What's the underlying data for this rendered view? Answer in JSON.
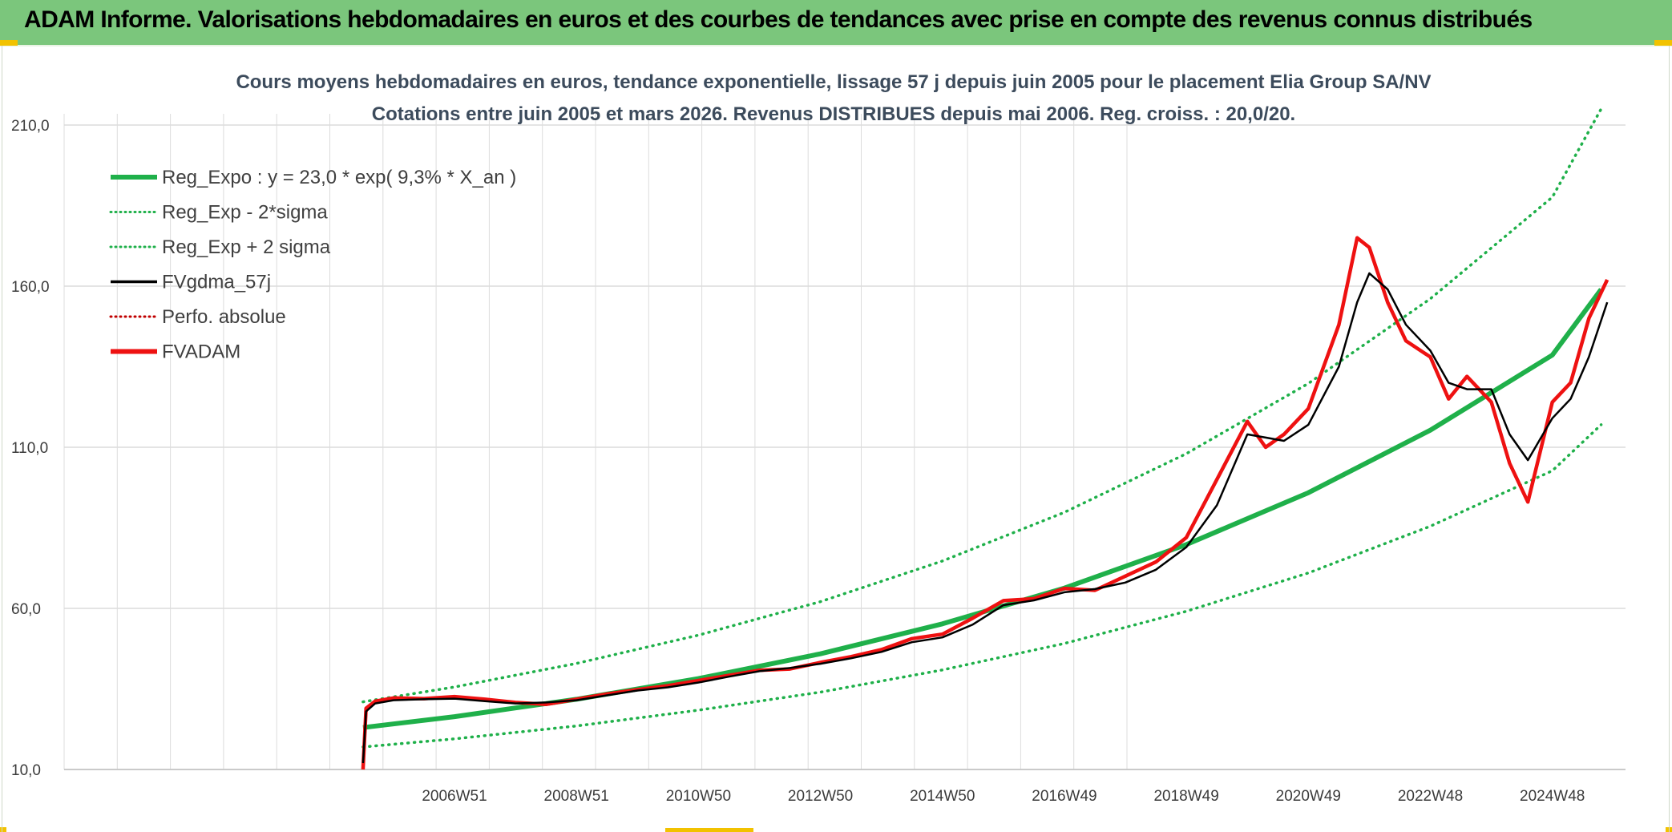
{
  "header": {
    "title": "ADAM Informe. Valorisations hebdomadaires en euros et des courbes de tendances avec prise en compte des revenus connus distribués"
  },
  "colors": {
    "header_bg": "#7bc67c",
    "reg_expo": "#1fb04a",
    "fvgdma": "#000000",
    "perfo": "#c00000",
    "fvadam": "#ee1111",
    "grid": "#dcdcdc"
  },
  "chart_data": {
    "type": "line",
    "title_line1": "Cours moyens hebdomadaires en euros, tendance exponentielle, lissage 57 j depuis juin 2005 pour le placement Elia Group SA/NV",
    "title_line2": "Cotations entre juin 2005 et mars 2026. Revenus DISTRIBUES depuis mai 2006. Reg. croiss. : 20,0/20.",
    "xlim": [
      2000.6,
      2026.2
    ],
    "ylim": [
      10,
      210
    ],
    "y_ticks": [
      {
        "value": 10,
        "label": "10,0"
      },
      {
        "value": 60,
        "label": "60,0"
      },
      {
        "value": 110,
        "label": "110,0"
      },
      {
        "value": 160,
        "label": "160,0"
      },
      {
        "value": 210,
        "label": "210,0"
      }
    ],
    "x_ticks": [
      {
        "x": 2007.0,
        "label": "2006W51"
      },
      {
        "x": 2009.0,
        "label": "2008W51"
      },
      {
        "x": 2011.0,
        "label": "2010W50"
      },
      {
        "x": 2013.0,
        "label": "2012W50"
      },
      {
        "x": 2015.0,
        "label": "2014W50"
      },
      {
        "x": 2017.0,
        "label": "2016W49"
      },
      {
        "x": 2019.0,
        "label": "2018W49"
      },
      {
        "x": 2021.0,
        "label": "2020W49"
      },
      {
        "x": 2023.0,
        "label": "2022W48"
      },
      {
        "x": 2025.0,
        "label": "2024W48"
      }
    ],
    "legend": [
      {
        "key": "reg_expo",
        "label": "Reg_Expo : y = 23,0 * exp( 9,3% *  X_an )",
        "style": "thick",
        "color": "#1fb04a"
      },
      {
        "key": "reg_minus",
        "label": "Reg_Exp - 2*sigma",
        "style": "dotted",
        "color": "#1fb04a"
      },
      {
        "key": "reg_plus",
        "label": "Reg_Exp + 2 sigma",
        "style": "dotted",
        "color": "#1fb04a"
      },
      {
        "key": "fvgdma",
        "label": "FVgdma_57j",
        "style": "solid",
        "color": "#000000"
      },
      {
        "key": "perfo",
        "label": "Perfo. absolue",
        "style": "dotted",
        "color": "#c00000"
      },
      {
        "key": "fvadam",
        "label": "FVADAM",
        "style": "thick",
        "color": "#ee1111"
      }
    ],
    "series": [
      {
        "key": "reg_expo",
        "x": [
          2005.5,
          2007,
          2009,
          2011,
          2013,
          2015,
          2017,
          2019,
          2021,
          2023,
          2025,
          2025.8
        ],
        "values": [
          23.0,
          26.4,
          31.8,
          38.2,
          45.9,
          55.2,
          66.3,
          79.8,
          95.9,
          115.3,
          138.6,
          159.0
        ]
      },
      {
        "key": "reg_minus",
        "x": [
          2005.5,
          2007,
          2009,
          2011,
          2013,
          2015,
          2017,
          2019,
          2021,
          2023,
          2025,
          2025.8
        ],
        "values": [
          17.0,
          19.5,
          23.5,
          28.4,
          34.0,
          40.9,
          49.1,
          59.1,
          71.0,
          85.5,
          102.7,
          117.0
        ]
      },
      {
        "key": "reg_plus",
        "x": [
          2005.5,
          2007,
          2009,
          2011,
          2013,
          2015,
          2017,
          2019,
          2021,
          2023,
          2025,
          2025.8
        ],
        "values": [
          31.0,
          35.6,
          42.9,
          51.7,
          62.1,
          74.7,
          89.8,
          108.0,
          129.8,
          156.1,
          187.6,
          215.0
        ]
      },
      {
        "key": "fvgdma",
        "x": [
          2005.5,
          2005.55,
          2005.7,
          2006,
          2006.5,
          2007,
          2007.5,
          2008,
          2008.5,
          2009,
          2009.5,
          2010,
          2010.5,
          2011,
          2011.5,
          2012,
          2012.5,
          2013,
          2013.5,
          2014,
          2014.5,
          2015,
          2015.5,
          2016,
          2016.5,
          2017,
          2017.5,
          2018,
          2018.5,
          2019,
          2019.5,
          2020,
          2020.3,
          2020.6,
          2021,
          2021.5,
          2021.8,
          2022,
          2022.3,
          2022.6,
          2023,
          2023.3,
          2023.6,
          2024,
          2024.3,
          2024.6,
          2025,
          2025.3,
          2025.6,
          2025.9
        ],
        "values": [
          12,
          28,
          30.5,
          31.5,
          31.8,
          32,
          31.2,
          30.5,
          30.8,
          31.5,
          33,
          34.5,
          35.5,
          37,
          38.8,
          40.5,
          41.5,
          42.8,
          44.5,
          46.5,
          49.5,
          51,
          55,
          61,
          62.5,
          65,
          66,
          68,
          72,
          79,
          92,
          114,
          113,
          112,
          117,
          135,
          155,
          164,
          159,
          148,
          140,
          130,
          128,
          128,
          114,
          106,
          119,
          125,
          138,
          155
        ]
      },
      {
        "key": "fvadam",
        "x": [
          2005.5,
          2005.55,
          2005.7,
          2006,
          2006.5,
          2007,
          2007.5,
          2008,
          2008.5,
          2009,
          2009.5,
          2010,
          2010.5,
          2011,
          2011.5,
          2012,
          2012.5,
          2013,
          2013.5,
          2014,
          2014.5,
          2015,
          2015.5,
          2016,
          2016.5,
          2017,
          2017.5,
          2018,
          2018.5,
          2019,
          2019.5,
          2020,
          2020.3,
          2020.6,
          2021,
          2021.5,
          2021.8,
          2022,
          2022.3,
          2022.6,
          2023,
          2023.3,
          2023.6,
          2024,
          2024.3,
          2024.6,
          2025,
          2025.3,
          2025.6,
          2025.9
        ],
        "values": [
          10,
          29,
          31.2,
          32.2,
          32.0,
          32.6,
          31.8,
          30.8,
          30.2,
          31.8,
          33.4,
          34.8,
          36.0,
          37.6,
          39.2,
          40.8,
          41.2,
          43.2,
          45.0,
          47.2,
          50.6,
          52.0,
          57.0,
          62.4,
          63.0,
          66.2,
          65.6,
          70.0,
          74.4,
          82.0,
          100.0,
          118.0,
          110.0,
          114.0,
          122.0,
          148.0,
          175.0,
          172.0,
          155.0,
          143.0,
          138.0,
          125.0,
          132.0,
          124.0,
          105.0,
          93.0,
          124.0,
          130.0,
          150.0,
          162.0
        ]
      }
    ]
  }
}
